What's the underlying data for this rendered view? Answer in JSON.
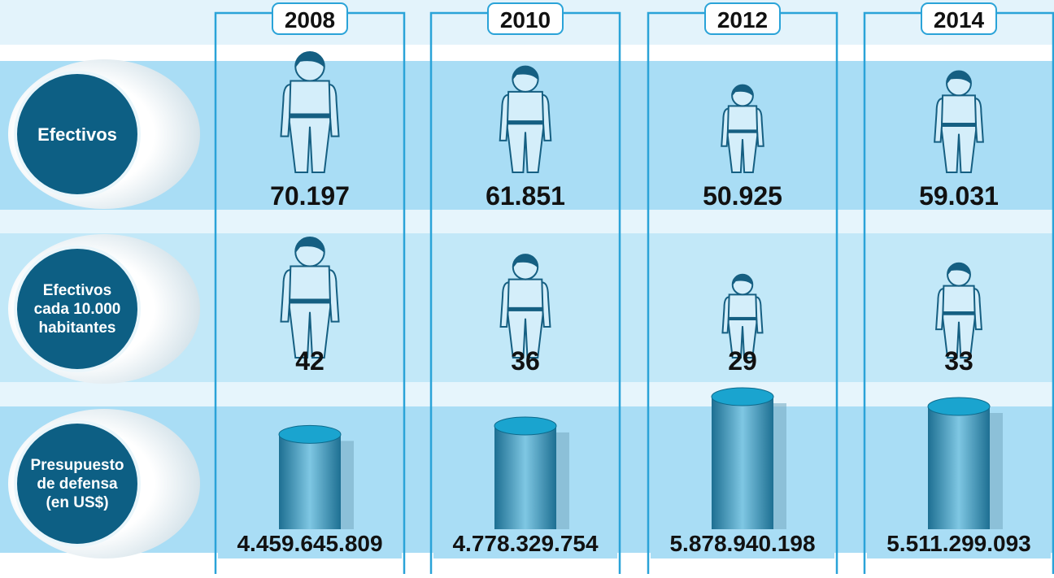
{
  "chart_data": {
    "type": "pictogram",
    "categories": [
      "2008",
      "2010",
      "2012",
      "2014"
    ],
    "series": [
      {
        "name": "Efectivos",
        "values": [
          70197,
          61851,
          50925,
          59031
        ],
        "value_labels": [
          "70.197",
          "61.851",
          "50.925",
          "59.031"
        ]
      },
      {
        "name": "Efectivos cada 10.000 habitantes",
        "values": [
          42,
          36,
          29,
          33
        ]
      },
      {
        "name": "Presupuesto de defensa (en US$)",
        "values": [
          4459645809,
          4778329754,
          5878940198,
          5511299093
        ],
        "value_labels": [
          "4.459.645.809",
          "4.778.329.754",
          "5.878.940.198",
          "5.511.299.093"
        ]
      }
    ]
  }
}
